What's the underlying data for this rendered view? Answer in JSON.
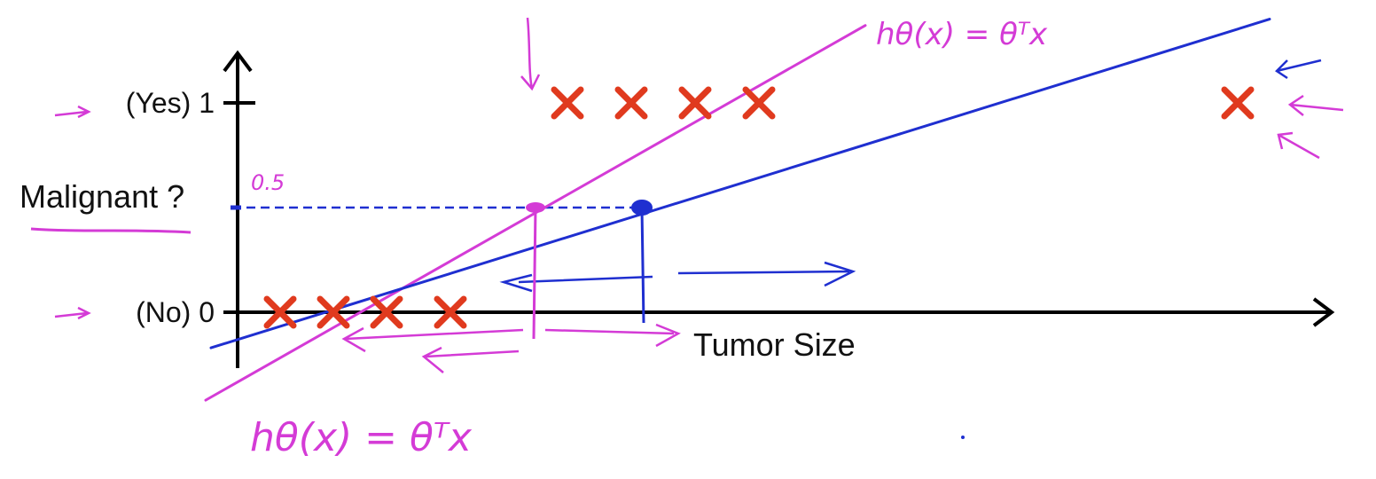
{
  "chart_data": {
    "type": "scatter",
    "title": "",
    "xlabel": "Tumor Size",
    "ylabel": "Malignant ?",
    "y_ticks": [
      {
        "value": 0,
        "label": "(No) 0"
      },
      {
        "value": 1,
        "label": "(Yes) 1"
      }
    ],
    "threshold_label": "0.5",
    "threshold": 0.5,
    "xlim": [
      0,
      10
    ],
    "ylim": [
      -0.35,
      1.5
    ],
    "series": [
      {
        "name": "",
        "kind": "points",
        "color": "#e03a1e",
        "marker": "x",
        "points": [
          {
            "x": 0.4,
            "y": 0
          },
          {
            "x": 0.9,
            "y": 0
          },
          {
            "x": 1.4,
            "y": 0
          },
          {
            "x": 2.0,
            "y": 0
          },
          {
            "x": 3.1,
            "y": 1
          },
          {
            "x": 3.7,
            "y": 1
          },
          {
            "x": 4.3,
            "y": 1
          },
          {
            "x": 4.9,
            "y": 1
          },
          {
            "x": 9.4,
            "y": 1
          }
        ]
      }
    ],
    "fit_lines": [
      {
        "name": "",
        "color": "#d43bd6",
        "x": [
          -0.3,
          5.9
        ],
        "y": [
          -0.42,
          1.37
        ]
      },
      {
        "name": "",
        "color": "#1f2fd0",
        "x": [
          -0.25,
          9.7
        ],
        "y": [
          -0.17,
          1.4
        ]
      }
    ],
    "threshold_points": [
      {
        "x": 2.8,
        "y": 0.5,
        "color": "#d43bd6"
      },
      {
        "x": 3.8,
        "y": 0.5,
        "color": "#1f2fd0"
      }
    ],
    "annotations": [
      {
        "text": "hθ(x) = θᵀx",
        "color": "#d43bd6"
      },
      {
        "text": "hθ(x) = θᵀx",
        "color": "#d43bd6"
      }
    ]
  },
  "colors": {
    "axis": "#000000",
    "magenta": "#d43bd6",
    "blue": "#1f2fd0",
    "cross": "#e03a1e"
  }
}
